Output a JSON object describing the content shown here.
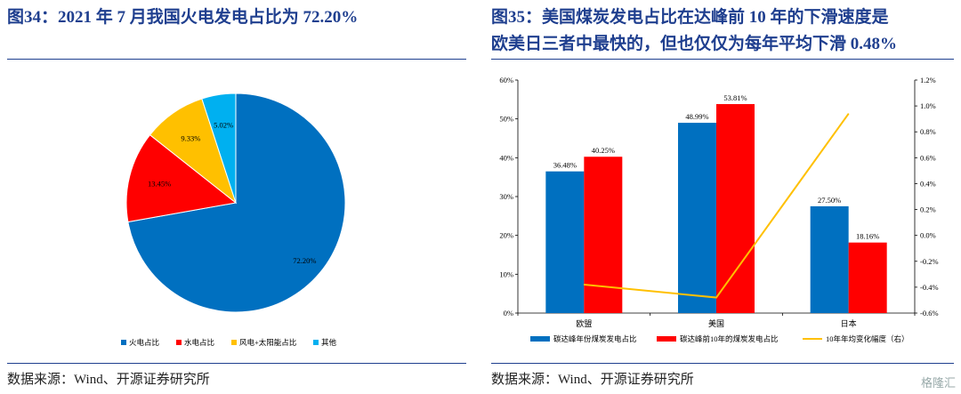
{
  "left": {
    "title": "图34：2021 年 7 月我国火电发电占比为 72.20%",
    "source": "数据来源：Wind、开源证券研究所"
  },
  "right": {
    "title_line1": "图35：美国煤炭发电占比在达峰前 10 年的下滑速度是",
    "title_line2": "欧美日三者中最快的，但也仅仅为每年平均下滑 0.48%",
    "source": "数据来源：Wind、开源证券研究所"
  },
  "watermark": "格隆汇",
  "chart_data": [
    {
      "type": "pie",
      "slices": [
        {
          "name": "火电占比",
          "value": 72.2,
          "label": "72.20%",
          "color": "#0070c0"
        },
        {
          "name": "水电占比",
          "value": 13.45,
          "label": "13.45%",
          "color": "#ff0000"
        },
        {
          "name": "风电+太阳能占比",
          "value": 9.33,
          "label": "9.33%",
          "color": "#ffc000"
        },
        {
          "name": "其他",
          "value": 5.02,
          "label": "5.02%",
          "color": "#00b0f0"
        }
      ],
      "legend_placement": "bottom"
    },
    {
      "type": "bar",
      "categories": [
        "欧盟",
        "美国",
        "日本"
      ],
      "series": [
        {
          "name": "碳达峰年份煤炭发电占比",
          "values": [
            36.48,
            48.99,
            27.5
          ],
          "labels": [
            "36.48%",
            "48.99%",
            "27.50%"
          ],
          "color": "#0070c0",
          "axis": "left"
        },
        {
          "name": "碳达峰前10年的煤炭发电占比",
          "values": [
            40.25,
            53.81,
            18.16
          ],
          "labels": [
            "40.25%",
            "53.81%",
            "18.16%"
          ],
          "color": "#ff0000",
          "axis": "left"
        },
        {
          "name": "10年年均变化幅度（右）",
          "type": "line",
          "values": [
            -0.38,
            -0.48,
            0.94
          ],
          "color": "#ffc000",
          "axis": "right"
        }
      ],
      "ylim": [
        0,
        60
      ],
      "yticks": [
        "0%",
        "10%",
        "20%",
        "30%",
        "40%",
        "50%",
        "60%"
      ],
      "y2lim": [
        -0.6,
        1.2
      ],
      "y2ticks": [
        "-0.6%",
        "-0.4%",
        "-0.2%",
        "0.0%",
        "0.2%",
        "0.4%",
        "0.6%",
        "0.8%",
        "1.0%",
        "1.2%"
      ],
      "legend_placement": "bottom"
    }
  ]
}
